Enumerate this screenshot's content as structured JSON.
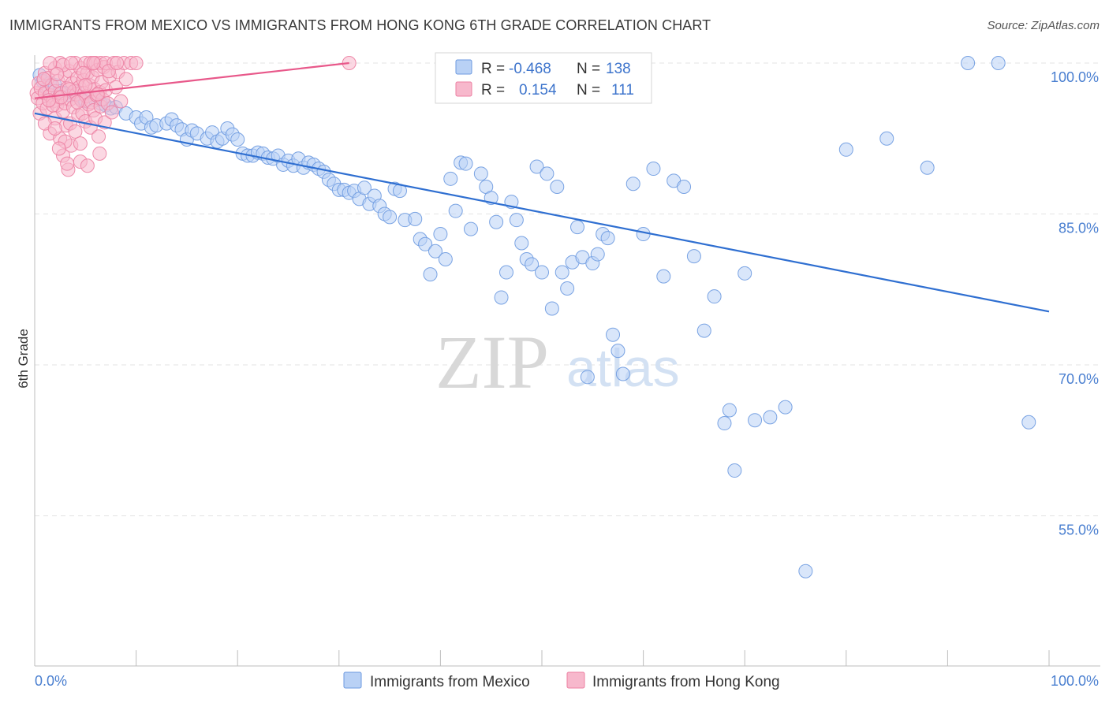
{
  "title": "IMMIGRANTS FROM MEXICO VS IMMIGRANTS FROM HONG KONG 6TH GRADE CORRELATION CHART",
  "source": "Source: ZipAtlas.com",
  "watermark": {
    "zip": "ZIP",
    "atlas": "atlas"
  },
  "colors": {
    "mexico_fill": "#b9d1f5",
    "mexico_stroke": "#6d9ae0",
    "mexico_line": "#2f6fd1",
    "hk_fill": "#f7b8cc",
    "hk_stroke": "#ec7fa2",
    "hk_line": "#e8588a",
    "grid": "#e3e3e3",
    "axis_label": "#4a7fd0"
  },
  "legend": {
    "rows": [
      {
        "r_label": "R =",
        "r_value": "-0.468",
        "n_label": "N =",
        "n_value": "138"
      },
      {
        "r_label": "R =",
        "r_value": "0.154",
        "n_label": "N =",
        "n_value": "111"
      }
    ]
  },
  "bottom_legend": [
    "Immigrants from Mexico",
    "Immigrants from Hong Kong"
  ],
  "chart_data": {
    "type": "scatter",
    "title": "IMMIGRANTS FROM MEXICO VS IMMIGRANTS FROM HONG KONG 6TH GRADE CORRELATION CHART",
    "xlabel": "",
    "ylabel": "6th Grade",
    "xlim": [
      0,
      100
    ],
    "ylim": [
      40,
      101
    ],
    "x_tick_labels": [
      "0.0%",
      "100.0%"
    ],
    "y_ticks": [
      100,
      85,
      70,
      55
    ],
    "y_tick_labels": [
      "100.0%",
      "85.0%",
      "70.0%",
      "55.0%"
    ],
    "grid": true,
    "series": [
      {
        "name": "Immigrants from Mexico",
        "r": -0.468,
        "n": 138,
        "trend": {
          "x": [
            0,
            100
          ],
          "y": [
            95.0,
            75.3
          ]
        },
        "points": [
          [
            0.5,
            98.8
          ],
          [
            0.8,
            98.2
          ],
          [
            1.2,
            97.5
          ],
          [
            1.5,
            98.0
          ],
          [
            2.0,
            97.8
          ],
          [
            2.5,
            97.2
          ],
          [
            3.0,
            97.0
          ],
          [
            3.5,
            96.8
          ],
          [
            4.0,
            97.2
          ],
          [
            4.5,
            96.5
          ],
          [
            5.0,
            96.2
          ],
          [
            6.0,
            96.3
          ],
          [
            6.5,
            96.0
          ],
          [
            7.0,
            95.8
          ],
          [
            7.5,
            95.5
          ],
          [
            8.0,
            95.6
          ],
          [
            9.0,
            95.0
          ],
          [
            10.0,
            94.6
          ],
          [
            10.5,
            94.0
          ],
          [
            11.0,
            94.6
          ],
          [
            11.5,
            93.6
          ],
          [
            12.0,
            93.8
          ],
          [
            13.0,
            94.0
          ],
          [
            13.5,
            94.4
          ],
          [
            14.0,
            93.8
          ],
          [
            14.5,
            93.4
          ],
          [
            15.0,
            92.4
          ],
          [
            15.5,
            93.3
          ],
          [
            16.0,
            93.0
          ],
          [
            17.0,
            92.5
          ],
          [
            17.5,
            93.1
          ],
          [
            18.0,
            92.2
          ],
          [
            18.5,
            92.5
          ],
          [
            19.0,
            93.5
          ],
          [
            19.5,
            92.9
          ],
          [
            20.0,
            92.4
          ],
          [
            20.5,
            91.0
          ],
          [
            21.0,
            90.8
          ],
          [
            21.5,
            90.8
          ],
          [
            22.0,
            91.1
          ],
          [
            22.5,
            91.0
          ],
          [
            23.0,
            90.6
          ],
          [
            23.5,
            90.5
          ],
          [
            24.0,
            90.8
          ],
          [
            24.5,
            89.9
          ],
          [
            25.0,
            90.3
          ],
          [
            25.5,
            89.8
          ],
          [
            26.0,
            90.5
          ],
          [
            26.5,
            89.6
          ],
          [
            27.0,
            90.1
          ],
          [
            27.5,
            89.9
          ],
          [
            28.0,
            89.5
          ],
          [
            28.5,
            89.2
          ],
          [
            29.0,
            88.4
          ],
          [
            29.5,
            88.0
          ],
          [
            30.0,
            87.4
          ],
          [
            30.5,
            87.4
          ],
          [
            31.0,
            87.1
          ],
          [
            31.5,
            87.3
          ],
          [
            32.0,
            86.5
          ],
          [
            32.5,
            87.6
          ],
          [
            33.0,
            86.0
          ],
          [
            33.5,
            86.8
          ],
          [
            34.0,
            85.8
          ],
          [
            34.5,
            85.0
          ],
          [
            35.0,
            84.7
          ],
          [
            35.5,
            87.5
          ],
          [
            36.0,
            87.3
          ],
          [
            36.5,
            84.4
          ],
          [
            37.5,
            84.5
          ],
          [
            38.0,
            82.5
          ],
          [
            38.5,
            82.0
          ],
          [
            39.0,
            79.0
          ],
          [
            39.5,
            81.3
          ],
          [
            40.0,
            83.0
          ],
          [
            40.5,
            80.5
          ],
          [
            41.0,
            88.5
          ],
          [
            41.5,
            85.3
          ],
          [
            42.0,
            90.1
          ],
          [
            42.5,
            90.0
          ],
          [
            43.0,
            83.5
          ],
          [
            44.0,
            89.0
          ],
          [
            44.5,
            87.7
          ],
          [
            45.0,
            86.6
          ],
          [
            45.5,
            84.2
          ],
          [
            46.0,
            76.7
          ],
          [
            46.5,
            79.2
          ],
          [
            47.0,
            86.2
          ],
          [
            47.5,
            84.4
          ],
          [
            48.0,
            82.1
          ],
          [
            48.5,
            80.5
          ],
          [
            49.0,
            80.0
          ],
          [
            49.5,
            89.7
          ],
          [
            50.0,
            79.2
          ],
          [
            50.5,
            89.0
          ],
          [
            51.0,
            75.6
          ],
          [
            51.5,
            87.7
          ],
          [
            52.0,
            79.2
          ],
          [
            52.5,
            77.6
          ],
          [
            53.0,
            80.2
          ],
          [
            53.5,
            83.7
          ],
          [
            54.0,
            80.7
          ],
          [
            54.5,
            68.8
          ],
          [
            55.0,
            80.1
          ],
          [
            55.5,
            81.0
          ],
          [
            56.0,
            83.0
          ],
          [
            56.5,
            82.6
          ],
          [
            57.0,
            73.0
          ],
          [
            57.5,
            71.4
          ],
          [
            58.0,
            69.1
          ],
          [
            59.0,
            88.0
          ],
          [
            60.0,
            83.0
          ],
          [
            61.0,
            89.5
          ],
          [
            62.0,
            78.8
          ],
          [
            63.0,
            88.3
          ],
          [
            64.0,
            87.7
          ],
          [
            65.0,
            80.8
          ],
          [
            66.0,
            73.4
          ],
          [
            67.0,
            76.8
          ],
          [
            68.0,
            64.2
          ],
          [
            68.5,
            65.5
          ],
          [
            69.0,
            59.5
          ],
          [
            70.0,
            79.1
          ],
          [
            71.0,
            64.5
          ],
          [
            72.5,
            64.8
          ],
          [
            74.0,
            65.8
          ],
          [
            76.0,
            49.5
          ],
          [
            80.0,
            91.4
          ],
          [
            84.0,
            92.5
          ],
          [
            88.0,
            89.6
          ],
          [
            92.0,
            100.0
          ],
          [
            95.0,
            100.0
          ],
          [
            98.0,
            64.3
          ]
        ]
      },
      {
        "name": "Immigrants from Hong Kong",
        "r": 0.154,
        "n": 111,
        "trend": {
          "x": [
            0,
            31
          ],
          "y": [
            96.5,
            100.0
          ]
        },
        "points": [
          [
            0.2,
            97.0
          ],
          [
            0.3,
            96.5
          ],
          [
            0.4,
            98.0
          ],
          [
            0.5,
            95.0
          ],
          [
            0.6,
            97.5
          ],
          [
            0.8,
            96.0
          ],
          [
            1.0,
            99.0
          ],
          [
            1.0,
            97.0
          ],
          [
            1.2,
            95.5
          ],
          [
            1.3,
            98.5
          ],
          [
            1.5,
            96.8
          ],
          [
            1.5,
            93.0
          ],
          [
            1.7,
            97.8
          ],
          [
            1.8,
            96.2
          ],
          [
            2.0,
            99.5
          ],
          [
            2.0,
            97.2
          ],
          [
            2.0,
            94.5
          ],
          [
            2.2,
            95.8
          ],
          [
            2.3,
            98.2
          ],
          [
            2.4,
            96.6
          ],
          [
            2.5,
            92.5
          ],
          [
            2.5,
            100.0
          ],
          [
            2.6,
            97.0
          ],
          [
            2.8,
            95.2
          ],
          [
            2.8,
            90.8
          ],
          [
            3.0,
            98.8
          ],
          [
            3.0,
            96.0
          ],
          [
            3.1,
            93.8
          ],
          [
            3.2,
            97.5
          ],
          [
            3.3,
            89.4
          ],
          [
            3.4,
            99.2
          ],
          [
            3.5,
            96.4
          ],
          [
            3.5,
            94.0
          ],
          [
            3.6,
            91.8
          ],
          [
            3.7,
            98.0
          ],
          [
            3.8,
            95.6
          ],
          [
            3.9,
            97.2
          ],
          [
            4.0,
            100.0
          ],
          [
            4.0,
            93.2
          ],
          [
            4.1,
            96.9
          ],
          [
            4.2,
            98.5
          ],
          [
            4.3,
            94.8
          ],
          [
            4.4,
            97.6
          ],
          [
            4.5,
            92.0
          ],
          [
            4.5,
            99.5
          ],
          [
            4.6,
            96.3
          ],
          [
            4.7,
            95.0
          ],
          [
            4.8,
            98.3
          ],
          [
            4.9,
            97.0
          ],
          [
            5.0,
            100.0
          ],
          [
            5.0,
            94.2
          ],
          [
            5.1,
            96.7
          ],
          [
            5.2,
            99.0
          ],
          [
            5.3,
            95.9
          ],
          [
            5.4,
            97.8
          ],
          [
            5.5,
            100.0
          ],
          [
            5.5,
            93.6
          ],
          [
            5.6,
            96.1
          ],
          [
            5.7,
            98.6
          ],
          [
            5.8,
            95.3
          ],
          [
            5.9,
            97.4
          ],
          [
            6.0,
            100.0
          ],
          [
            6.0,
            94.5
          ],
          [
            6.1,
            96.8
          ],
          [
            6.2,
            99.3
          ],
          [
            6.3,
            92.7
          ],
          [
            6.4,
            97.1
          ],
          [
            6.5,
            100.0
          ],
          [
            6.5,
            95.7
          ],
          [
            6.6,
            98.1
          ],
          [
            6.7,
            96.4
          ],
          [
            6.8,
            99.6
          ],
          [
            6.9,
            94.1
          ],
          [
            7.0,
            100.0
          ],
          [
            7.0,
            97.3
          ],
          [
            7.2,
            96.0
          ],
          [
            7.4,
            98.7
          ],
          [
            7.6,
            95.1
          ],
          [
            7.8,
            100.0
          ],
          [
            8.0,
            97.6
          ],
          [
            8.2,
            99.1
          ],
          [
            8.5,
            96.2
          ],
          [
            8.8,
            100.0
          ],
          [
            9.0,
            98.4
          ],
          [
            9.5,
            100.0
          ],
          [
            1.5,
            100.0
          ],
          [
            2.8,
            99.8
          ],
          [
            3.6,
            100.0
          ],
          [
            4.8,
            99.0
          ],
          [
            5.8,
            100.0
          ],
          [
            1.0,
            94.0
          ],
          [
            2.0,
            93.5
          ],
          [
            3.0,
            92.2
          ],
          [
            3.2,
            90.0
          ],
          [
            4.5,
            90.2
          ],
          [
            5.2,
            89.8
          ],
          [
            6.4,
            91.0
          ],
          [
            2.4,
            91.5
          ],
          [
            1.8,
            95.8
          ],
          [
            2.6,
            96.6
          ],
          [
            3.4,
            97.4
          ],
          [
            4.2,
            96.1
          ],
          [
            5.0,
            97.8
          ],
          [
            6.2,
            96.9
          ],
          [
            7.3,
            99.2
          ],
          [
            8.1,
            100.0
          ],
          [
            0.9,
            98.4
          ],
          [
            1.4,
            96.3
          ],
          [
            2.2,
            98.9
          ],
          [
            10.0,
            100.0
          ],
          [
            31.0,
            100.0
          ]
        ]
      }
    ]
  }
}
